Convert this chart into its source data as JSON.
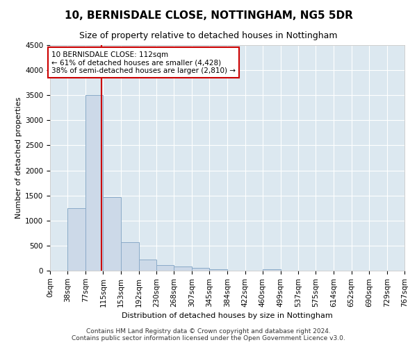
{
  "title": "10, BERNISDALE CLOSE, NOTTINGHAM, NG5 5DR",
  "subtitle": "Size of property relative to detached houses in Nottingham",
  "xlabel": "Distribution of detached houses by size in Nottingham",
  "ylabel": "Number of detached properties",
  "footer_line1": "Contains HM Land Registry data © Crown copyright and database right 2024.",
  "footer_line2": "Contains public sector information licensed under the Open Government Licence v3.0.",
  "bar_color": "#ccd9e8",
  "bar_edge_color": "#8aaac8",
  "vline_x": 112,
  "vline_color": "#cc0000",
  "annotation_text": "10 BERNISDALE CLOSE: 112sqm\n← 61% of detached houses are smaller (4,428)\n38% of semi-detached houses are larger (2,810) →",
  "annotation_box_color": "#cc0000",
  "bin_edges": [
    0,
    38,
    77,
    115,
    153,
    192,
    230,
    268,
    307,
    345,
    384,
    422,
    460,
    499,
    537,
    575,
    614,
    652,
    690,
    729,
    767
  ],
  "bar_heights": [
    5,
    1250,
    3500,
    1470,
    570,
    220,
    115,
    90,
    55,
    30,
    5,
    5,
    30,
    5,
    0,
    0,
    0,
    0,
    0,
    0
  ],
  "ylim": [
    0,
    4500
  ],
  "yticks": [
    0,
    500,
    1000,
    1500,
    2000,
    2500,
    3000,
    3500,
    4000,
    4500
  ],
  "background_color": "#ffffff",
  "plot_bg_color": "#dce8f0",
  "grid_color": "#ffffff",
  "title_fontsize": 11,
  "subtitle_fontsize": 9,
  "ylabel_fontsize": 8,
  "xlabel_fontsize": 8,
  "tick_fontsize": 7.5,
  "footer_fontsize": 6.5
}
